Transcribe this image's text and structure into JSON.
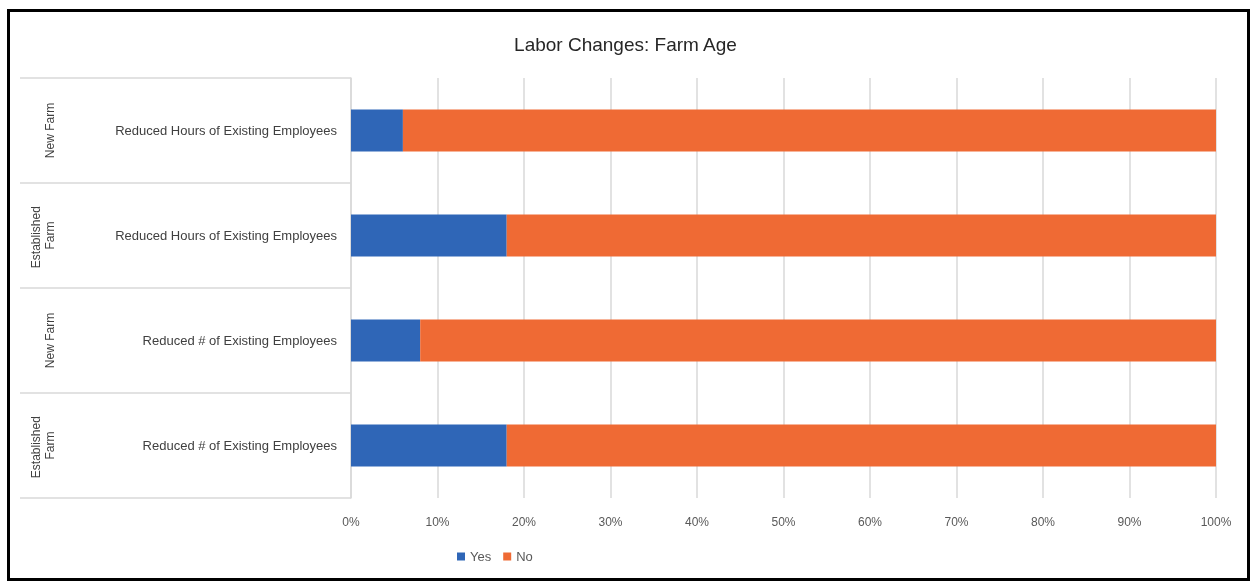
{
  "chart_data": {
    "type": "bar",
    "orientation": "horizontal",
    "stacked": true,
    "title": "Labor Changes: Farm Age",
    "categories": [
      "Reduced Hours of Existing Employees",
      "Reduced Hours of Existing Employees",
      "Reduced # of Existing Employees",
      "Reduced # of Existing Employees"
    ],
    "annotations": [
      "New Farm",
      "Established Farm",
      "New Farm",
      "Established Farm"
    ],
    "series": [
      {
        "name": "Yes",
        "color": "#2f66b7",
        "values": [
          6,
          18,
          8,
          18
        ]
      },
      {
        "name": "No",
        "color": "#ef6a34",
        "values": [
          94,
          82,
          92,
          82
        ]
      }
    ],
    "xlim": [
      0,
      100
    ],
    "xticks": [
      {
        "value": 0,
        "label": "0%"
      },
      {
        "value": 10,
        "label": "10%"
      },
      {
        "value": 20,
        "label": "20%"
      },
      {
        "value": 30,
        "label": "30%"
      },
      {
        "value": 40,
        "label": "40%"
      },
      {
        "value": 50,
        "label": "50%"
      },
      {
        "value": 60,
        "label": "60%"
      },
      {
        "value": 70,
        "label": "70%"
      },
      {
        "value": 80,
        "label": "80%"
      },
      {
        "value": 90,
        "label": "90%"
      },
      {
        "value": 100,
        "label": "100%"
      }
    ],
    "grid": "x",
    "legend": "bottom"
  }
}
